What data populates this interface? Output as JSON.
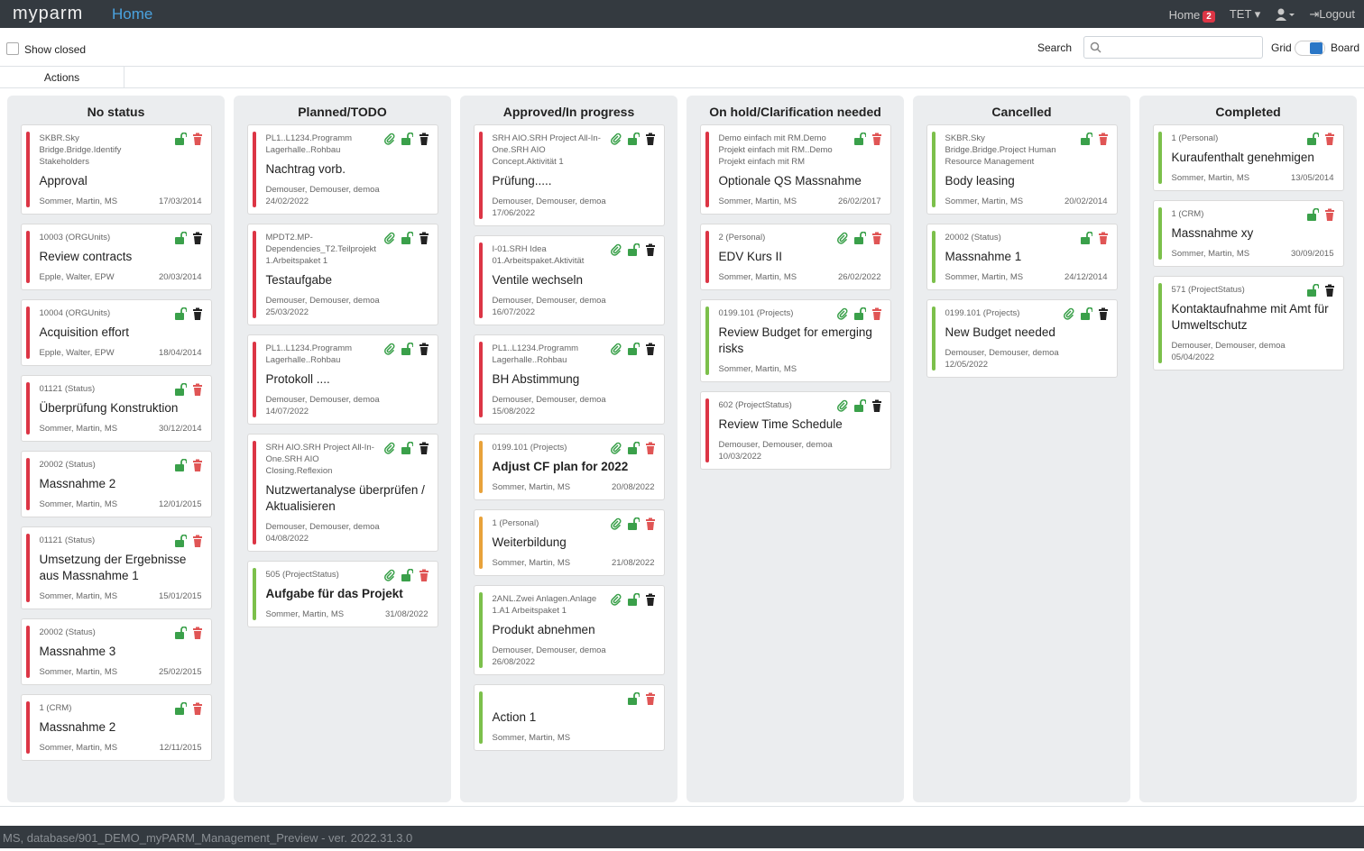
{
  "header": {
    "logo": "myparm",
    "title": "Home",
    "nav": {
      "home": "Home",
      "badge": "2",
      "user": "TET",
      "logout": "Logout"
    }
  },
  "toolbar": {
    "show_closed": "Show closed",
    "search": "Search",
    "grid": "Grid",
    "board": "Board"
  },
  "tabs": [
    "Actions"
  ],
  "columns": [
    {
      "title": "No status",
      "cards": [
        {
          "ref": "SKBR.Sky Bridge.Bridge.Identify Stakeholders",
          "title": "Approval",
          "people": "Sommer, Martin, MS",
          "date": "17/03/2014",
          "bar": "#dc3545",
          "trash": "#e05555"
        },
        {
          "ref": "10003 (ORGUnits)",
          "title": "Review contracts",
          "people": "Epple, Walter, EPW",
          "date": "20/03/2014",
          "bar": "#dc3545",
          "trash": "#222222"
        },
        {
          "ref": "10004 (ORGUnits)",
          "title": "Acquisition effort",
          "people": "Epple, Walter, EPW",
          "date": "18/04/2014",
          "bar": "#dc3545",
          "trash": "#222222"
        },
        {
          "ref": "01121 (Status)",
          "title": "Überprüfung Konstruktion",
          "people": "Sommer, Martin, MS",
          "date": "30/12/2014",
          "bar": "#dc3545",
          "trash": "#e05555"
        },
        {
          "ref": "20002 (Status)",
          "title": "Massnahme 2",
          "people": "Sommer, Martin, MS",
          "date": "12/01/2015",
          "bar": "#dc3545",
          "trash": "#e05555"
        },
        {
          "ref": "01121 (Status)",
          "title": "Umsetzung der Ergebnisse aus Massnahme 1",
          "people": "Sommer, Martin, MS",
          "date": "15/01/2015",
          "bar": "#dc3545",
          "trash": "#e05555"
        },
        {
          "ref": "20002 (Status)",
          "title": "Massnahme 3",
          "people": "Sommer, Martin, MS",
          "date": "25/02/2015",
          "bar": "#dc3545",
          "trash": "#e05555"
        },
        {
          "ref": "1 (CRM)",
          "title": "Massnahme 2",
          "people": "Sommer, Martin, MS",
          "date": "12/11/2015",
          "bar": "#dc3545",
          "trash": "#e05555"
        }
      ]
    },
    {
      "title": "Planned/TODO",
      "cards": [
        {
          "ref": "PL1..L1234.Programm Lagerhalle..Rohbau",
          "title": "Nachtrag vorb.",
          "people": "Demouser, Demouser, demoa",
          "date": "24/02/2022",
          "bar": "#dc3545",
          "attachment": true,
          "trash": "#222222"
        },
        {
          "ref": "MPDT2.MP-Dependencies_T2.Teilprojekt 1.Arbeitspaket 1",
          "title": "Testaufgabe",
          "people": "Demouser, Demouser, demoa",
          "date": "25/03/2022",
          "bar": "#dc3545",
          "attachment": true,
          "trash": "#222222"
        },
        {
          "ref": "PL1..L1234.Programm Lagerhalle..Rohbau",
          "title": "Protokoll ....",
          "people": "Demouser, Demouser, demoa",
          "date": "14/07/2022",
          "bar": "#dc3545",
          "attachment": true,
          "trash": "#222222"
        },
        {
          "ref": "SRH AIO.SRH Project All-In-One.SRH AIO Closing.Reflexion",
          "title": "Nutzwertanalyse überprüfen / Aktualisieren",
          "people": "Demouser, Demouser, demoa",
          "date": "04/08/2022",
          "bar": "#dc3545",
          "attachment": true,
          "trash": "#222222"
        },
        {
          "ref": "505 (ProjectStatus)",
          "title": "Aufgabe für das Projekt",
          "bold": true,
          "people": "Sommer, Martin, MS",
          "date": "31/08/2022",
          "bar": "#7cc04b",
          "attachment": true,
          "trash": "#e05555"
        }
      ]
    },
    {
      "title": "Approved/In progress",
      "cards": [
        {
          "ref": "SRH AIO.SRH Project All-In-One.SRH AIO Concept.Aktivität 1",
          "title": "Prüfung.....",
          "people": "Demouser, Demouser, demoa",
          "date": "17/06/2022",
          "bar": "#dc3545",
          "attachment": true,
          "trash": "#222222"
        },
        {
          "ref": "I-01.SRH Idea 01.Arbeitspaket.Aktivität",
          "title": "Ventile wechseln",
          "people": "Demouser, Demouser, demoa",
          "date": "16/07/2022",
          "bar": "#dc3545",
          "attachment": true,
          "trash": "#222222"
        },
        {
          "ref": "PL1..L1234.Programm Lagerhalle..Rohbau",
          "title": "BH Abstimmung",
          "people": "Demouser, Demouser, demoa",
          "date": "15/08/2022",
          "bar": "#dc3545",
          "attachment": true,
          "trash": "#222222"
        },
        {
          "ref": "0199.101 (Projects)",
          "title": "Adjust CF plan for 2022",
          "bold": true,
          "people": "Sommer, Martin, MS",
          "date": "20/08/2022",
          "bar": "#e8a23a",
          "attachment": true,
          "trash": "#e05555"
        },
        {
          "ref": "1 (Personal)",
          "title": "Weiterbildung",
          "people": "Sommer, Martin, MS",
          "date": "21/08/2022",
          "bar": "#e8a23a",
          "attachment": true,
          "trash": "#e05555"
        },
        {
          "ref": "2ANL.Zwei Anlagen.Anlage 1.A1 Arbeitspaket 1",
          "title": "Produkt abnehmen",
          "people": "Demouser, Demouser, demoa",
          "date": "26/08/2022",
          "bar": "#7cc04b",
          "attachment": true,
          "trash": "#222222"
        },
        {
          "title": "Action 1",
          "people": "Sommer, Martin, MS",
          "bar": "#7cc04b",
          "trash": "#e05555"
        }
      ]
    },
    {
      "title": "On hold/Clarification needed",
      "cards": [
        {
          "ref": "Demo einfach mit RM.Demo Projekt einfach mit RM..Demo Projekt einfach mit RM",
          "title": "Optionale QS Massnahme",
          "people": "Sommer, Martin, MS",
          "date": "26/02/2017",
          "bar": "#dc3545",
          "trash": "#e05555"
        },
        {
          "ref": "2 (Personal)",
          "title": "EDV Kurs II",
          "people": "Sommer, Martin, MS",
          "date": "26/02/2022",
          "bar": "#dc3545",
          "attachment": true,
          "trash": "#e05555"
        },
        {
          "ref": "0199.101 (Projects)",
          "title": "Review Budget for emerging risks",
          "people": "Sommer, Martin, MS",
          "bar": "#7cc04b",
          "attachment": true,
          "trash": "#e05555"
        },
        {
          "ref": "602 (ProjectStatus)",
          "title": "Review Time Schedule",
          "people": "Demouser, Demouser, demoa",
          "date": "10/03/2022",
          "bar": "#dc3545",
          "attachment": true,
          "trash": "#222222"
        }
      ]
    },
    {
      "title": "Cancelled",
      "cards": [
        {
          "ref": "SKBR.Sky Bridge.Bridge.Project Human Resource Management",
          "title": "Body leasing",
          "people": "Sommer, Martin, MS",
          "date": "20/02/2014",
          "bar": "#7cc04b",
          "trash": "#e05555"
        },
        {
          "ref": "20002 (Status)",
          "title": "Massnahme 1",
          "people": "Sommer, Martin, MS",
          "date": "24/12/2014",
          "bar": "#7cc04b",
          "trash": "#e05555"
        },
        {
          "ref": "0199.101 (Projects)",
          "title": "New Budget needed",
          "people": "Demouser, Demouser, demoa",
          "date": "12/05/2022",
          "bar": "#7cc04b",
          "attachment": true,
          "trash": "#222222"
        }
      ]
    },
    {
      "title": "Completed",
      "cards": [
        {
          "ref": "1 (Personal)",
          "title": "Kuraufenthalt genehmigen",
          "people": "Sommer, Martin, MS",
          "date": "13/05/2014",
          "bar": "#7cc04b",
          "trash": "#e05555"
        },
        {
          "ref": "1 (CRM)",
          "title": "Massnahme xy",
          "people": "Sommer, Martin, MS",
          "date": "30/09/2015",
          "bar": "#7cc04b",
          "trash": "#e05555"
        },
        {
          "ref": "571 (ProjectStatus)",
          "title": "Kontaktaufnahme mit Amt für Umweltschutz",
          "people": "Demouser, Demouser, demoa",
          "date": "05/04/2022",
          "bar": "#7cc04b",
          "trash": "#222222"
        }
      ]
    }
  ],
  "footer": "MS, database/901_DEMO_myPARM_Management_Preview - ver. 2022.31.3.0"
}
